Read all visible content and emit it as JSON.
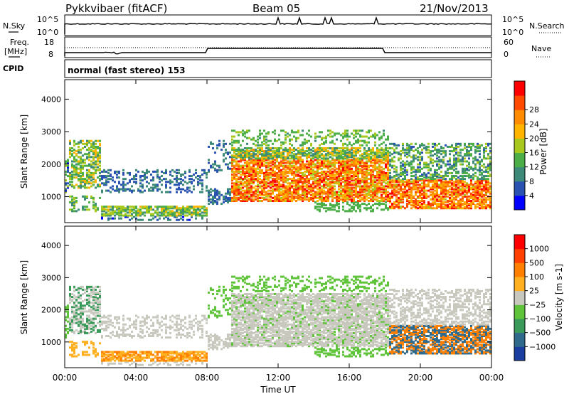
{
  "header": {
    "station": "Pykkvibaer (fitACF)",
    "beam": "Beam 05",
    "date": "21/Nov/2013"
  },
  "nsky_panel": {
    "left_label": "N.Sky",
    "right_label": "N.Search",
    "left_ticks": [
      "10^5",
      "10^0"
    ],
    "right_ticks": [
      "10^5",
      "10^0"
    ]
  },
  "freq_panel": {
    "left_label_1": "Freq.",
    "left_label_2": "[MHz]",
    "right_label": "Nave",
    "left_ticks": [
      "18",
      "8"
    ],
    "right_ticks": [
      "60",
      "0"
    ]
  },
  "cpid_panel": {
    "label": "CPID",
    "text": "normal (fast stereo) 153"
  },
  "colors": {
    "power_scale": [
      "#0000ff",
      "#2a52b0",
      "#3d8a78",
      "#4cae46",
      "#a8c81e",
      "#ffb400",
      "#ff8c00",
      "#ff4a00",
      "#ff0000"
    ],
    "velocity_scale": [
      "#1a3ea0",
      "#2f6a8c",
      "#3a9a5a",
      "#5fc43a",
      "#c8c8be",
      "#ffb020",
      "#ff8000",
      "#ff4000",
      "#ff0000"
    ]
  },
  "chart_data": [
    {
      "type": "heatmap",
      "name": "power-panel",
      "xlabel": "",
      "ylabel": "Slant Range [km]",
      "ylim": [
        200,
        4600
      ],
      "xlim": [
        0,
        24
      ],
      "yticks": [
        "1000",
        "2000",
        "3000",
        "4000"
      ],
      "colorbar_label": "Power [dB]",
      "colorbar_ticks": [
        "4",
        "8",
        "12",
        "16",
        "20",
        "24",
        "28"
      ],
      "colorbar_range": [
        0,
        32
      ]
    },
    {
      "type": "heatmap",
      "name": "velocity-panel",
      "xlabel": "Time UT",
      "ylabel": "Slant Range [km]",
      "ylim": [
        200,
        4600
      ],
      "xlim": [
        0,
        24
      ],
      "yticks": [
        "1000",
        "2000",
        "3000",
        "4000"
      ],
      "xticks": [
        "00:00",
        "04:00",
        "08:00",
        "12:00",
        "16:00",
        "20:00",
        "00:00"
      ],
      "colorbar_label": "Velocity [m s-1]",
      "colorbar_ticks": [
        "1000",
        "500",
        "100",
        "25",
        "−25",
        "−100",
        "−500",
        "−1000"
      ]
    }
  ]
}
